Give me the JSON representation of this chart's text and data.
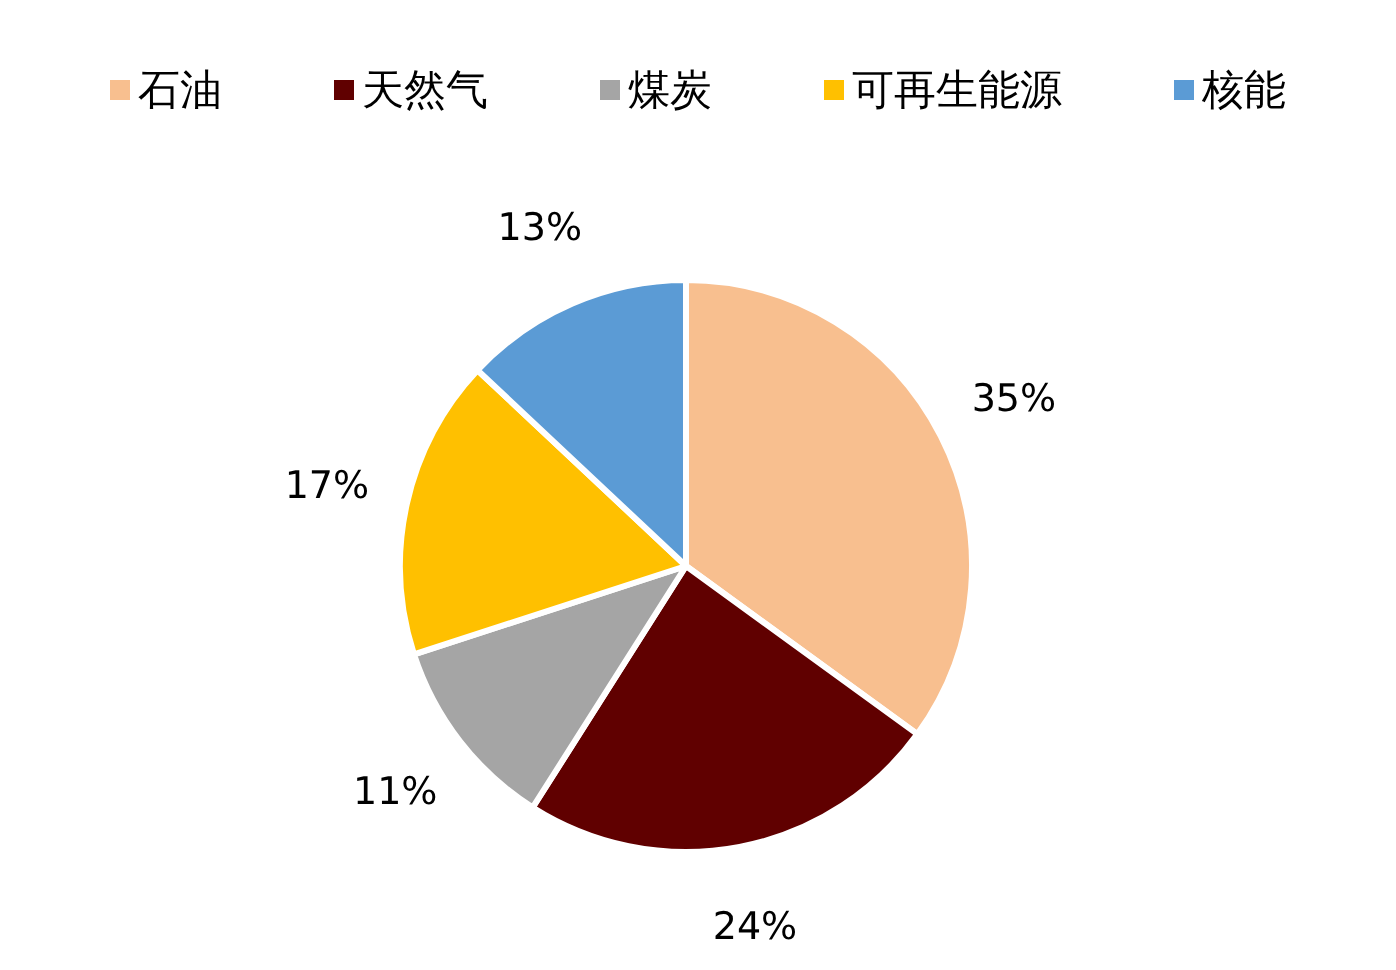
{
  "chart_data": {
    "type": "pie",
    "categories": [
      "石油",
      "天然气",
      "煤炭",
      "可再生能源",
      "核能"
    ],
    "values": [
      35,
      24,
      11,
      17,
      13
    ],
    "colors": [
      "#f8bf8f",
      "#600000",
      "#a5a5a5",
      "#ffc000",
      "#5b9bd5"
    ],
    "value_labels": [
      "35%",
      "24%",
      "11%",
      "17%",
      "13%"
    ],
    "legend": "top"
  }
}
